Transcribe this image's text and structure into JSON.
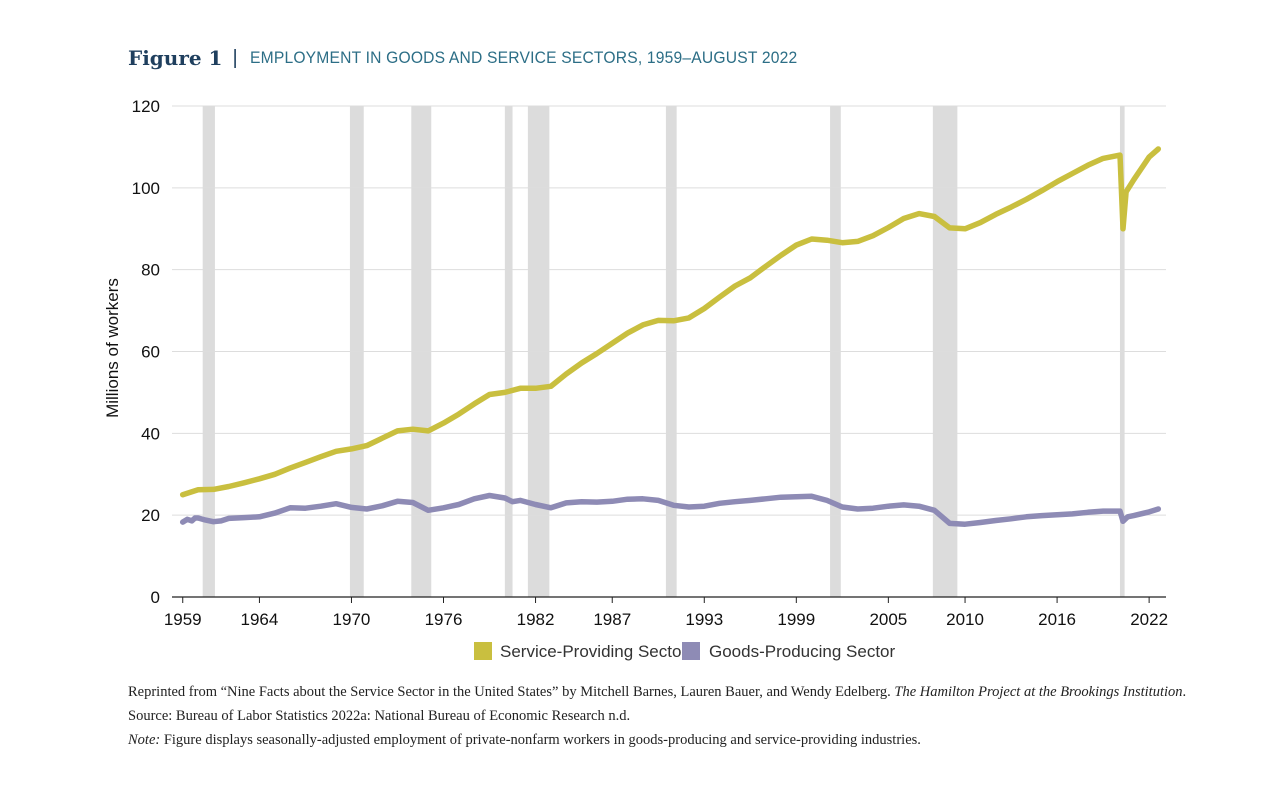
{
  "header": {
    "figure_label": "Figure 1",
    "separator": "|",
    "title": "EMPLOYMENT IN GOODS AND SERVICE SECTORS, 1959–AUGUST 2022"
  },
  "chart_data": {
    "type": "line",
    "title": "EMPLOYMENT IN GOODS AND SERVICE SECTORS, 1959–AUGUST 2022",
    "xlabel": "",
    "ylabel": "Millions of workers",
    "xlim": [
      1958.3,
      2023.1
    ],
    "ylim": [
      0,
      120
    ],
    "x_ticks": [
      "1959",
      "1964",
      "1970",
      "1976",
      "1982",
      "1987",
      "1993",
      "1999",
      "2005",
      "2010",
      "2016",
      "2022"
    ],
    "y_ticks": [
      0,
      20,
      40,
      60,
      80,
      100,
      120
    ],
    "grid": "horizontal",
    "legend_placement": "bottom-center",
    "recessions": [
      [
        1960.3,
        1961.1
      ],
      [
        1969.9,
        1970.8
      ],
      [
        1973.9,
        1975.2
      ],
      [
        1980.0,
        1980.5
      ],
      [
        1981.5,
        1982.9
      ],
      [
        1990.5,
        1991.2
      ],
      [
        2001.2,
        2001.9
      ],
      [
        2007.9,
        2009.5
      ],
      [
        2020.1,
        2020.4
      ]
    ],
    "series": [
      {
        "name": "Service-Providing Sector",
        "color": "#c9bf3f",
        "points": [
          [
            1959,
            25
          ],
          [
            1960,
            26.2
          ],
          [
            1961,
            26.3
          ],
          [
            1962,
            27
          ],
          [
            1963,
            27.9
          ],
          [
            1964,
            28.9
          ],
          [
            1965,
            30
          ],
          [
            1966,
            31.5
          ],
          [
            1967,
            32.9
          ],
          [
            1968,
            34.3
          ],
          [
            1969,
            35.6
          ],
          [
            1970,
            36.2
          ],
          [
            1971,
            37
          ],
          [
            1972,
            38.8
          ],
          [
            1973,
            40.6
          ],
          [
            1974,
            41
          ],
          [
            1975,
            40.6
          ],
          [
            1976,
            42.5
          ],
          [
            1977,
            44.7
          ],
          [
            1978,
            47.2
          ],
          [
            1979,
            49.5
          ],
          [
            1980,
            50
          ],
          [
            1981,
            51
          ],
          [
            1982,
            51
          ],
          [
            1983,
            51.5
          ],
          [
            1984,
            54.5
          ],
          [
            1985,
            57.2
          ],
          [
            1986,
            59.5
          ],
          [
            1987,
            62
          ],
          [
            1988,
            64.5
          ],
          [
            1989,
            66.5
          ],
          [
            1990,
            67.6
          ],
          [
            1991,
            67.5
          ],
          [
            1992,
            68.2
          ],
          [
            1993,
            70.5
          ],
          [
            1994,
            73.3
          ],
          [
            1995,
            76
          ],
          [
            1996,
            78
          ],
          [
            1997,
            80.8
          ],
          [
            1998,
            83.5
          ],
          [
            1999,
            86
          ],
          [
            2000,
            87.5
          ],
          [
            2001,
            87.2
          ],
          [
            2002,
            86.6
          ],
          [
            2003,
            86.9
          ],
          [
            2004,
            88.3
          ],
          [
            2005,
            90.3
          ],
          [
            2006,
            92.5
          ],
          [
            2007,
            93.7
          ],
          [
            2008,
            93
          ],
          [
            2009,
            90.2
          ],
          [
            2010,
            90
          ],
          [
            2011,
            91.5
          ],
          [
            2012,
            93.5
          ],
          [
            2013,
            95.3
          ],
          [
            2014,
            97.2
          ],
          [
            2015,
            99.3
          ],
          [
            2016,
            101.5
          ],
          [
            2017,
            103.5
          ],
          [
            2018,
            105.5
          ],
          [
            2019,
            107.2
          ],
          [
            2020.1,
            108
          ],
          [
            2020.3,
            90
          ],
          [
            2020.5,
            99
          ],
          [
            2021,
            102
          ],
          [
            2022,
            107.5
          ],
          [
            2022.6,
            109.5
          ]
        ]
      },
      {
        "name": "Goods-Producing Sector",
        "color": "#8e8bb5",
        "points": [
          [
            1959,
            18.3
          ],
          [
            1959.3,
            19
          ],
          [
            1959.6,
            18.6
          ],
          [
            1959.8,
            19.3
          ],
          [
            1960,
            19.3
          ],
          [
            1960.5,
            18.8
          ],
          [
            1961,
            18.4
          ],
          [
            1961.5,
            18.6
          ],
          [
            1962,
            19.2
          ],
          [
            1963,
            19.4
          ],
          [
            1964,
            19.6
          ],
          [
            1965,
            20.5
          ],
          [
            1966,
            21.8
          ],
          [
            1967,
            21.7
          ],
          [
            1968,
            22.2
          ],
          [
            1969,
            22.8
          ],
          [
            1970,
            21.9
          ],
          [
            1971,
            21.5
          ],
          [
            1972,
            22.3
          ],
          [
            1973,
            23.4
          ],
          [
            1974,
            23.1
          ],
          [
            1975,
            21.2
          ],
          [
            1976,
            21.8
          ],
          [
            1977,
            22.6
          ],
          [
            1978,
            24
          ],
          [
            1979,
            24.8
          ],
          [
            1980,
            24.2
          ],
          [
            1980.5,
            23.3
          ],
          [
            1981,
            23.6
          ],
          [
            1982,
            22.6
          ],
          [
            1983,
            21.8
          ],
          [
            1984,
            23
          ],
          [
            1985,
            23.3
          ],
          [
            1986,
            23.2
          ],
          [
            1987,
            23.4
          ],
          [
            1988,
            23.9
          ],
          [
            1989,
            24
          ],
          [
            1990,
            23.6
          ],
          [
            1991,
            22.4
          ],
          [
            1992,
            22
          ],
          [
            1993,
            22.2
          ],
          [
            1994,
            22.9
          ],
          [
            1995,
            23.3
          ],
          [
            1996,
            23.6
          ],
          [
            1997,
            24
          ],
          [
            1998,
            24.4
          ],
          [
            1999,
            24.5
          ],
          [
            2000,
            24.6
          ],
          [
            2001,
            23.6
          ],
          [
            2002,
            22
          ],
          [
            2003,
            21.5
          ],
          [
            2004,
            21.7
          ],
          [
            2005,
            22.2
          ],
          [
            2006,
            22.5
          ],
          [
            2007,
            22.2
          ],
          [
            2008,
            21.2
          ],
          [
            2009,
            18
          ],
          [
            2010,
            17.8
          ],
          [
            2011,
            18.2
          ],
          [
            2012,
            18.7
          ],
          [
            2013,
            19.1
          ],
          [
            2014,
            19.6
          ],
          [
            2015,
            19.9
          ],
          [
            2016,
            20.1
          ],
          [
            2017,
            20.3
          ],
          [
            2018,
            20.7
          ],
          [
            2019,
            21
          ],
          [
            2020.1,
            21
          ],
          [
            2020.3,
            18.5
          ],
          [
            2020.6,
            19.6
          ],
          [
            2021,
            19.9
          ],
          [
            2022,
            20.8
          ],
          [
            2022.6,
            21.5
          ]
        ]
      }
    ]
  },
  "footnotes": {
    "reprint_prefix": "Reprinted from “Nine Facts about the Service Sector in the United States” by Mitchell Barnes, Lauren Bauer, and Wendy Edelberg.",
    "reprint_italic": "The Hamilton Project at the Brookings Institution",
    "reprint_suffix": ".",
    "source": "Source: Bureau of Labor Statistics 2022a: National Bureau of Economic Research n.d.",
    "note_label": "Note:",
    "note_text": "Figure displays seasonally-adjusted employment of private-nonfarm workers in goods-producing and service-providing industries."
  }
}
